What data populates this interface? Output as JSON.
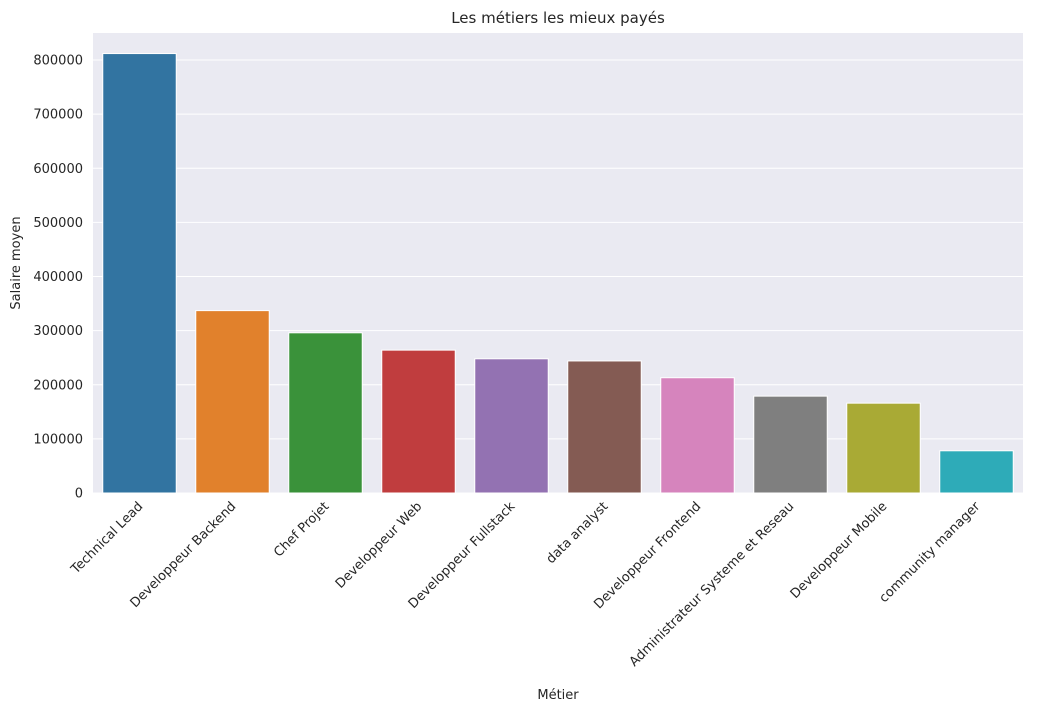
{
  "chart_data": {
    "type": "bar",
    "title": "Les métiers les mieux payés",
    "xlabel": "Métier",
    "ylabel": "Salaire moyen",
    "categories": [
      "Technical Lead",
      "Developpeur Backend",
      "Chef Projet",
      "Developpeur Web",
      "Developpeur Fullstack",
      "data analyst",
      "Developpeur Frontend",
      "Administrateur Systeme et Reseau",
      "Developpeur Mobile",
      "community manager"
    ],
    "values": [
      812000,
      337000,
      296000,
      264000,
      248000,
      244000,
      213000,
      179000,
      166000,
      78000
    ],
    "colors": [
      "#3274a1",
      "#e1812c",
      "#3a923a",
      "#c03d3e",
      "#9372b2",
      "#845b53",
      "#d684bd",
      "#7f7f7f",
      "#a9aa35",
      "#2eabb8"
    ],
    "ylim": [
      0,
      850000
    ],
    "yticks": [
      0,
      100000,
      200000,
      300000,
      400000,
      500000,
      600000,
      700000,
      800000
    ],
    "ytick_labels": [
      "0",
      "100000",
      "200000",
      "300000",
      "400000",
      "500000",
      "600000",
      "700000",
      "800000"
    ],
    "grid": true,
    "xtick_rotation": "45deg"
  }
}
